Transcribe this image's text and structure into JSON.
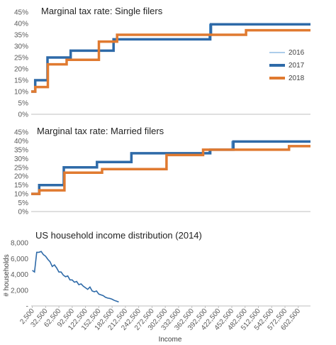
{
  "colors": {
    "s2016": "#5b9bd5",
    "s2017": "#2e6aa8",
    "s2018": "#e07a30",
    "axis": "#bfbfbf",
    "text": "#595959"
  },
  "chart_data": [
    {
      "type": "line",
      "title": "Marginal tax rate: Single filers",
      "ylim": [
        0,
        45
      ],
      "yticks": [
        "0%",
        "5%",
        "10%",
        "15%",
        "20%",
        "25%",
        "30%",
        "35%",
        "40%",
        "45%"
      ],
      "ytick_values": [
        0,
        5,
        10,
        15,
        20,
        25,
        30,
        35,
        40,
        45
      ],
      "xlim": [
        0,
        650000
      ],
      "legend": "right",
      "series": [
        {
          "name": "2016",
          "x": [
            0,
            9275,
            37650,
            91150,
            190150,
            413350,
            415050,
            650000
          ],
          "y": [
            10,
            15,
            25,
            28,
            33,
            35,
            39.6,
            39.6
          ]
        },
        {
          "name": "2017",
          "x": [
            0,
            9325,
            37950,
            91900,
            191650,
            416700,
            418400,
            650000
          ],
          "y": [
            10,
            15,
            25,
            28,
            33,
            35,
            39.6,
            39.6
          ]
        },
        {
          "name": "2018",
          "x": [
            0,
            9525,
            38700,
            82500,
            157500,
            200000,
            500000,
            650000
          ],
          "y": [
            10,
            12,
            22,
            24,
            32,
            35,
            37,
            37
          ]
        }
      ]
    },
    {
      "type": "line",
      "title": "Marginal tax rate: Married filers",
      "ylim": [
        0,
        45
      ],
      "yticks": [
        "0%",
        "5%",
        "10%",
        "15%",
        "20%",
        "25%",
        "30%",
        "35%",
        "40%",
        "45%"
      ],
      "ytick_values": [
        0,
        5,
        10,
        15,
        20,
        25,
        30,
        35,
        40,
        45
      ],
      "xlim": [
        0,
        650000
      ],
      "series": [
        {
          "name": "2016",
          "x": [
            0,
            18550,
            75300,
            151900,
            231450,
            413350,
            466950,
            650000
          ],
          "y": [
            10,
            15,
            25,
            28,
            33,
            35,
            39.6,
            39.6
          ]
        },
        {
          "name": "2017",
          "x": [
            0,
            18650,
            75900,
            153100,
            233350,
            416700,
            470700,
            650000
          ],
          "y": [
            10,
            15,
            25,
            28,
            33,
            35,
            39.6,
            39.6
          ]
        },
        {
          "name": "2018",
          "x": [
            0,
            19050,
            77400,
            165000,
            315000,
            400000,
            600000,
            650000
          ],
          "y": [
            10,
            12,
            22,
            24,
            32,
            35,
            37,
            37
          ]
        }
      ]
    },
    {
      "type": "line",
      "title": "US household income distribution (2014)",
      "ylabel": "# households",
      "xlabel": "Income",
      "ylim": [
        0,
        8000
      ],
      "yticks": [
        "-",
        "2,000",
        "4,000",
        "6,000",
        "8,000"
      ],
      "ytick_values": [
        0,
        2000,
        4000,
        6000,
        8000
      ],
      "xticks": [
        "2,500",
        "32,500",
        "62,500",
        "92,500",
        "122,500",
        "152,500",
        "182,500",
        "212,500",
        "242,500",
        "272,500",
        "302,500",
        "332,500",
        "362,500",
        "392,500",
        "422,500",
        "452,500",
        "482,500",
        "512,500",
        "542,500",
        "572,500",
        "602,500"
      ],
      "xtick_values": [
        2500,
        32500,
        62500,
        92500,
        122500,
        152500,
        182500,
        212500,
        242500,
        272500,
        302500,
        332500,
        362500,
        392500,
        422500,
        452500,
        482500,
        512500,
        542500,
        572500,
        602500
      ],
      "xlim": [
        0,
        630000
      ],
      "series": [
        {
          "x": [
            2500,
            7500,
            12500,
            17500,
            22500,
            27500,
            32500,
            37500,
            42500,
            47500,
            52500,
            57500,
            62500,
            67500,
            72500,
            77500,
            82500,
            87500,
            92500,
            97500,
            102500,
            107500,
            112500,
            117500,
            122500,
            127500,
            132500,
            137500,
            142500,
            147500,
            152500,
            157500,
            162500,
            167500,
            172500,
            177500,
            182500,
            187500,
            192500,
            197500
          ],
          "y": [
            4500,
            4300,
            6800,
            6800,
            6900,
            6500,
            6300,
            5900,
            5600,
            5000,
            5200,
            4800,
            4300,
            4300,
            3900,
            3700,
            3800,
            3300,
            3300,
            3000,
            3100,
            2700,
            2800,
            2500,
            2300,
            2100,
            2400,
            1900,
            1800,
            1900,
            1500,
            1400,
            1300,
            1100,
            1000,
            950,
            850,
            700,
            600,
            500
          ]
        }
      ]
    }
  ]
}
